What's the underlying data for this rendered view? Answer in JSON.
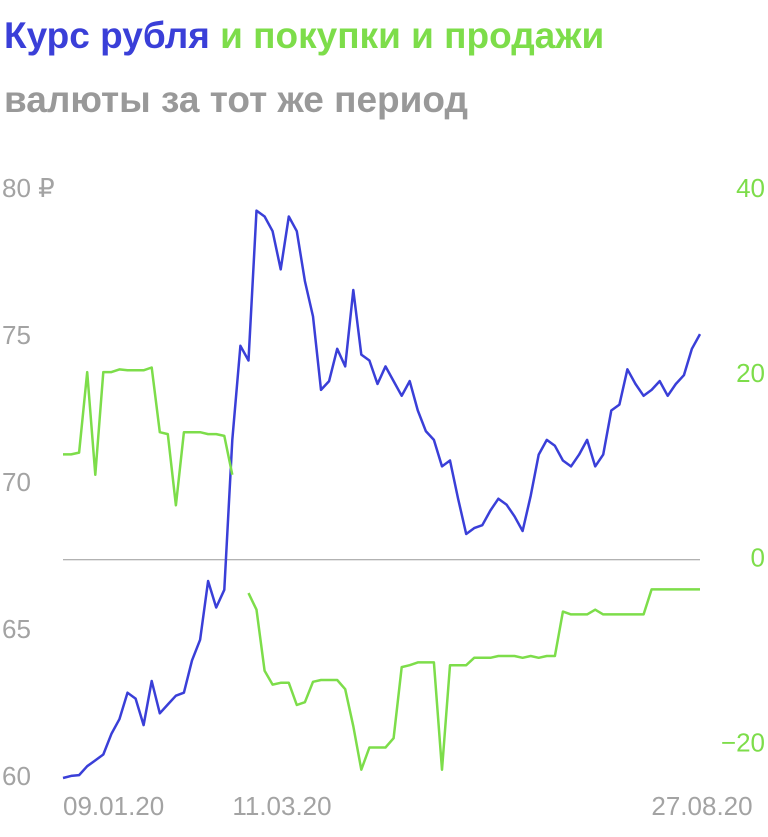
{
  "chart_data": {
    "type": "line",
    "title": [
      "Курс рубля",
      "и покупки и продажи"
    ],
    "subtitle": "валюты за тот же период",
    "categories": [
      "09.01.20",
      null,
      null,
      null,
      null,
      null,
      null,
      null,
      null,
      null,
      null,
      null,
      null,
      null,
      null,
      null,
      null,
      null,
      null,
      null,
      null,
      "11.03.20",
      null,
      null,
      null,
      null,
      null,
      null,
      null,
      null,
      null,
      null,
      null,
      null,
      null,
      null,
      null,
      null,
      null,
      null,
      null,
      null,
      null,
      null,
      null,
      null,
      null,
      null,
      null,
      null,
      null,
      null,
      null,
      null,
      null,
      null,
      null,
      null,
      null,
      null,
      null,
      null,
      null,
      null,
      null,
      null,
      null,
      null,
      null,
      null,
      null,
      null,
      null,
      null,
      null,
      null,
      null,
      null,
      null,
      "27.08.20"
    ],
    "series": [
      {
        "color": "#3a3fd8",
        "values": [
          60.0,
          60.07,
          60.1,
          60.4,
          60.6,
          60.8,
          61.5,
          62.0,
          62.9,
          62.7,
          61.8,
          63.3,
          62.2,
          62.5,
          62.8,
          62.9,
          64.0,
          64.7,
          66.7,
          65.8,
          66.4,
          71.5,
          74.7,
          74.2,
          79.3,
          79.1,
          78.6,
          77.3,
          79.1,
          78.6,
          76.9,
          75.7,
          73.2,
          73.5,
          74.6,
          74.0,
          76.6,
          74.4,
          74.2,
          73.4,
          74.0,
          73.5,
          73.0,
          73.5,
          72.5,
          71.8,
          71.5,
          70.6,
          70.8,
          69.5,
          68.3,
          68.5,
          68.6,
          69.1,
          69.5,
          69.3,
          68.9,
          68.4,
          69.6,
          71.0,
          71.5,
          71.3,
          70.8,
          70.6,
          71.0,
          71.5,
          70.6,
          71.0,
          72.5,
          72.7,
          73.9,
          73.4,
          73.0,
          73.2,
          73.5,
          73.0,
          73.4,
          73.7,
          74.6,
          75.1
        ]
      },
      {
        "color": "#7ddd4a",
        "axis": "y2",
        "values": [
          11.4,
          11.4,
          11.6,
          20.3,
          9.2,
          20.3,
          20.3,
          20.6,
          20.5,
          20.5,
          20.5,
          20.8,
          13.8,
          13.6,
          5.9,
          13.8,
          13.8,
          13.8,
          13.6,
          13.6,
          13.4,
          9.2,
          null,
          -3.6,
          -5.4,
          -12,
          -13.5,
          -13.3,
          -13.3,
          -15.7,
          -15.4,
          -13.2,
          -13,
          -13,
          -13,
          -14,
          -18,
          -22.7,
          -20.3,
          -20.3,
          -20.3,
          -19.3,
          -11.6,
          -11.4,
          -11.1,
          -11.1,
          -11.1,
          -22.7,
          -11.4,
          -11.4,
          -11.4,
          -10.6,
          -10.6,
          -10.6,
          -10.4,
          -10.4,
          -10.4,
          -10.6,
          -10.4,
          -10.6,
          -10.4,
          -10.4,
          -5.6,
          -5.9,
          -5.9,
          -5.9,
          -5.4,
          -5.9,
          -5.9,
          -5.9,
          -5.9,
          -5.9,
          -5.9,
          -3.2,
          -3.2,
          -3.2,
          -3.2,
          -3.2,
          -3.2,
          -3.2
        ]
      }
    ],
    "ylim": [
      60,
      80
    ],
    "yticks": [
      60,
      65,
      70,
      75,
      {
        "value": 80,
        "label": "80 ₽"
      }
    ],
    "y2lim": [
      -23.6,
      40
    ],
    "y2ticks": [
      {
        "value": -20,
        "label": "−20"
      },
      0,
      20,
      40
    ],
    "zero_line": true
  }
}
